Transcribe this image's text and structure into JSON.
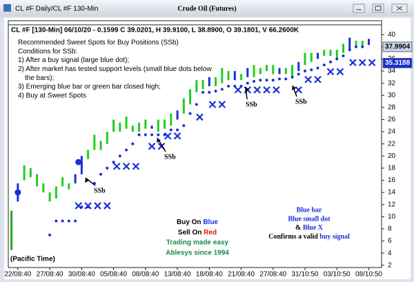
{
  "window_title": "CL #F Daily/CL #F 130-Min",
  "chart_data": {
    "type": "price-chart",
    "title": "Crude Oil (Futures)",
    "header": "CL #F [130-Min] 06/10/20 - 0.1599 C 39.0201, H 39.9100, L 38.8900, O 39.1801, V 66.2600K",
    "notes": [
      "Recommended Sweet Spots for Buy Positions (SSb)",
      "Conditions for SSb:",
      "1) After a buy signal (large blue dot);",
      "2) After market has tested support levels (small blue dots below",
      "the bars);",
      "3) Emerging blue bar or green bar closed high;",
      "4) Buy at Sweet Spots"
    ],
    "center_text": {
      "buy": [
        "Buy On",
        "Blue"
      ],
      "sell": [
        "Sell On",
        "Red"
      ],
      "line3": "Trading made easy",
      "line4": "Ablesys since 1994"
    },
    "right_text": {
      "line1": "Blue bar",
      "line2": "Blue small dot",
      "line3": [
        "&",
        "Blue X"
      ],
      "line4": [
        "Confirms a valid",
        "buy signal"
      ]
    },
    "time_zone": "(Pacific Time)",
    "annotations": [
      "SSb",
      "SSb",
      "SSb",
      "SSb"
    ],
    "xlim": [
      -3,
      114
    ],
    "ylim": [
      1.4,
      42.3
    ],
    "xticks": [
      {
        "value": 0,
        "label": "22/08:40"
      },
      {
        "value": 10,
        "label": "27/08:40"
      },
      {
        "value": 20,
        "label": "30/08:40"
      },
      {
        "value": 30,
        "label": "05/08:40"
      },
      {
        "value": 40,
        "label": "08/08:40"
      },
      {
        "value": 50,
        "label": "13/08:40"
      },
      {
        "value": 60,
        "label": "18/08:40"
      },
      {
        "value": 70,
        "label": "21/08:40"
      },
      {
        "value": 80,
        "label": "27/08:40"
      },
      {
        "value": 90,
        "label": "31/10:50"
      },
      {
        "value": 100,
        "label": "03/10:50"
      },
      {
        "value": 110,
        "label": "08/10:50"
      }
    ],
    "yticks": [
      2,
      4,
      6,
      8,
      10,
      12,
      14,
      16,
      18,
      20,
      22,
      24,
      26,
      28,
      30,
      32,
      34,
      36,
      38,
      40
    ],
    "bars": {
      "x": [
        -2,
        0,
        2,
        4,
        6,
        8,
        10,
        12,
        14,
        16,
        18,
        20,
        22,
        24,
        26,
        28,
        30,
        32,
        34,
        36,
        38,
        40,
        42,
        44,
        46,
        48,
        50,
        52,
        54,
        56,
        58,
        60,
        62,
        64,
        66,
        68,
        70,
        72,
        74,
        76,
        78,
        80,
        82,
        84,
        86,
        88,
        90,
        92,
        94,
        96,
        98,
        100,
        102,
        104,
        106,
        108,
        110
      ],
      "low": [
        4.5,
        12.5,
        16,
        16.5,
        15,
        14,
        12.5,
        13,
        15,
        14.5,
        15.5,
        17,
        19.5,
        21,
        21,
        22,
        24,
        24,
        24.5,
        24,
        24,
        24.5,
        24.5,
        24,
        24.5,
        25,
        26,
        27,
        28.5,
        30.5,
        31,
        31.5,
        31.5,
        32,
        32.5,
        32.5,
        32.5,
        33,
        33,
        33.5,
        34,
        33.5,
        33.5,
        33.5,
        33,
        34,
        35,
        35.5,
        36,
        36.5,
        36.5,
        36,
        37,
        37.5,
        38,
        38,
        38.3
      ],
      "high": [
        11,
        15.5,
        18.5,
        18,
        17,
        15.5,
        14,
        15,
        16.5,
        15.5,
        17,
        20,
        21,
        23.5,
        22.5,
        24,
        26,
        25.5,
        26.5,
        25,
        25.5,
        26,
        25,
        26,
        26,
        27,
        27.5,
        29.5,
        31,
        32.5,
        32.5,
        33,
        33,
        34.5,
        34,
        34,
        33.5,
        34.5,
        35,
        34.5,
        35,
        35,
        34.5,
        34.5,
        35,
        35.5,
        37,
        37,
        37,
        37.5,
        37.5,
        37.5,
        38.5,
        39.5,
        39,
        39,
        39.3
      ],
      "colors": [
        "#22aa22",
        "#1a2fd6",
        "#22cc22",
        "#22cc22",
        "#22cc22",
        "#22cc22",
        "#22cc22",
        "#22cc22",
        "#22cc22",
        "#22cc22",
        "#1a2fd6",
        "#1a2fd6",
        "#22cc22",
        "#22cc22",
        "#22cc22",
        "#22cc22",
        "#22cc22",
        "#22cc22",
        "#22cc22",
        "#22cc22",
        "#22cc22",
        "#22cc22",
        "#1a2fd6",
        "#22cc22",
        "#22cc22",
        "#22cc22",
        "#1a2fd6",
        "#22cc22",
        "#22cc22",
        "#22cc22",
        "#22cc22",
        "#1a2fd6",
        "#22cc22",
        "#22cc22",
        "#22cc22",
        "#1a2fd6",
        "#22cc22",
        "#1a2fd6",
        "#22cc22",
        "#22cc22",
        "#22cc22",
        "#22cc22",
        "#1a2fd6",
        "#22cc22",
        "#22cc22",
        "#1a2fd6",
        "#22cc22",
        "#22cc22",
        "#1a2fd6",
        "#22cc22",
        "#22cc22",
        "#22cc22",
        "#22cc22",
        "#1a2fd6",
        "#22cc22",
        "#22cc22",
        "#1a2fd6"
      ]
    },
    "signals": {
      "color": "#1a2fd6",
      "x": [
        0,
        19
      ],
      "y": [
        14,
        19
      ]
    },
    "support_dots": {
      "color": "#1a2fd6",
      "x": [
        10,
        12,
        14,
        16,
        18,
        20,
        22,
        24,
        26,
        28,
        30,
        32,
        34,
        36,
        38,
        40,
        42,
        44,
        46,
        48,
        50,
        52,
        54,
        56,
        58,
        60,
        62,
        64,
        66,
        68,
        70,
        72,
        74,
        76,
        78,
        80,
        82,
        84,
        86,
        88,
        90,
        92,
        94,
        96,
        98,
        100,
        102,
        104,
        106,
        108
      ],
      "y": [
        7,
        9.3,
        9.3,
        9.3,
        9.3,
        11.6,
        11.6,
        15.5,
        17,
        18,
        19,
        20,
        21,
        22,
        23.5,
        23.5,
        23.5,
        23.5,
        23.5,
        24.3,
        24.3,
        25,
        27,
        28.5,
        30.5,
        30.5,
        30.7,
        31,
        31.5,
        31.5,
        31.5,
        32,
        32.3,
        32.5,
        32.5,
        32.5,
        32.7,
        32.7,
        33,
        33.5,
        34,
        34.2,
        34.5,
        35,
        35.5,
        36,
        36.5,
        37.5,
        38,
        38
      ]
    },
    "sweet_spots": {
      "color": "#1a2fd6",
      "x": [
        19,
        22,
        25,
        28,
        31,
        34,
        37,
        42,
        45,
        47,
        50,
        57,
        61,
        64,
        69,
        72,
        75,
        78,
        81,
        88,
        91,
        94,
        98,
        101,
        105,
        108,
        111
      ],
      "y": [
        11.8,
        11.8,
        11.8,
        11.8,
        18.3,
        18.3,
        18.3,
        21.6,
        21.6,
        23.3,
        23.3,
        26.4,
        28.5,
        28.5,
        30.9,
        30.9,
        30.9,
        30.9,
        30.9,
        30.9,
        32.6,
        32.6,
        33.9,
        33.9,
        35.4,
        35.4,
        35.4
      ]
    },
    "price_tags": [
      37.9904,
      35.3188
    ]
  }
}
